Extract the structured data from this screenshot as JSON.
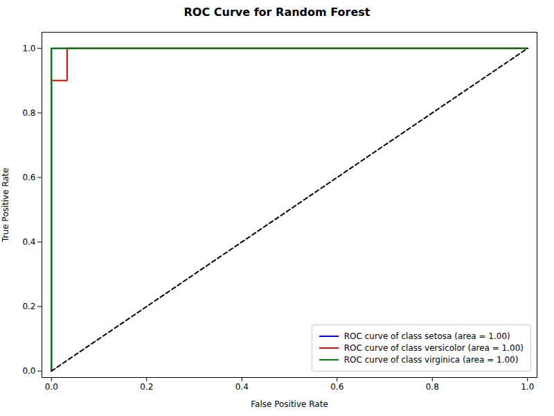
{
  "chart_data": {
    "type": "line",
    "title": "ROC Curve for Random Forest",
    "xlabel": "False Positive Rate",
    "ylabel": "True Positive Rate",
    "xlim": [
      -0.02,
      1.02
    ],
    "ylim": [
      -0.02,
      1.05
    ],
    "xticks": [
      {
        "value": 0,
        "label": "0.0"
      },
      0.2,
      0.4,
      0.6,
      0.8,
      {
        "value": 1,
        "label": "1.0"
      }
    ],
    "yticks": [
      {
        "value": 0,
        "label": "0.0"
      },
      0.2,
      0.4,
      0.6,
      0.8,
      {
        "value": 1,
        "label": "1.0"
      }
    ],
    "series": [
      {
        "name": "ROC curve of class setosa (area = 1.00)",
        "color": "blue",
        "x": [
          0.0,
          0.0,
          1.0
        ],
        "values": [
          0.0,
          1.0,
          1.0
        ]
      },
      {
        "name": "ROC curve of class versicolor (area = 1.00)",
        "color": "red",
        "x": [
          0.0,
          0.0,
          0.033,
          0.033,
          1.0
        ],
        "values": [
          0.0,
          0.9,
          0.9,
          1.0,
          1.0
        ]
      },
      {
        "name": "ROC curve of class virginica (area = 1.00)",
        "color": "green",
        "x": [
          0.0,
          0.0,
          1.0
        ],
        "values": [
          0.0,
          1.0,
          1.0
        ]
      }
    ],
    "diagonal": {
      "x": [
        0,
        1
      ],
      "values": [
        0,
        1
      ],
      "color": "black",
      "line_style": "dashed"
    },
    "legend": "lower right",
    "grid": false
  }
}
